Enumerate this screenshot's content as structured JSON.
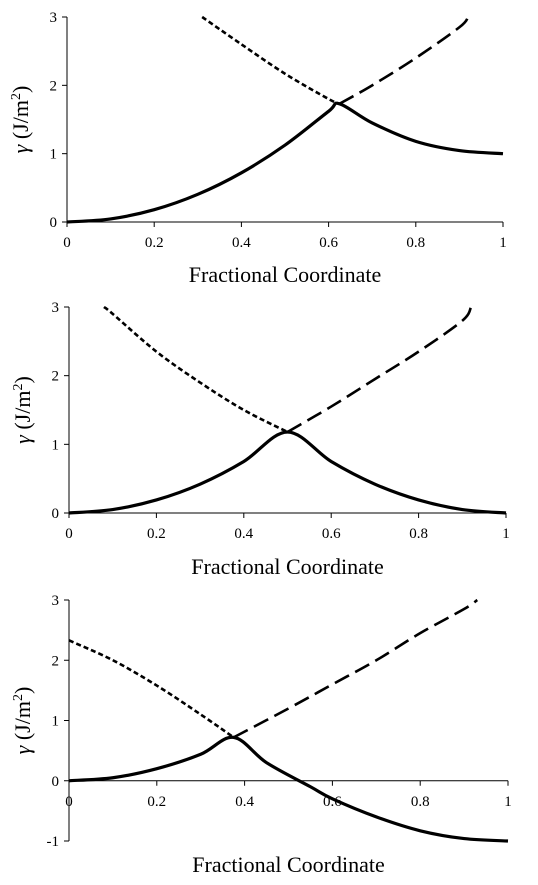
{
  "chart_data": [
    {
      "type": "line",
      "xlabel": "Fractional Coordinate",
      "ylabel": {
        "symbol": "γ",
        "unit_prefix": " (J/m",
        "unit_sup": "2",
        "unit_suffix": ")"
      },
      "xlim": [
        0,
        1
      ],
      "ylim": [
        0,
        3
      ],
      "xticks": [
        "0",
        "0.2",
        "0.4",
        "0.6",
        "0.8",
        "1"
      ],
      "yticks": [
        "0",
        "1",
        "2",
        "3"
      ],
      "grid": false,
      "legend": "none",
      "series": [
        {
          "style": "solid",
          "x": [
            0,
            0.1,
            0.2,
            0.3,
            0.4,
            0.5,
            0.6,
            0.625,
            0.7,
            0.8,
            0.9,
            1.0
          ],
          "y": [
            0,
            0.045,
            0.18,
            0.405,
            0.72,
            1.125,
            1.62,
            1.73,
            1.45,
            1.18,
            1.045,
            1.0
          ]
        },
        {
          "style": "dashed",
          "x": [
            0.625,
            0.7,
            0.8,
            0.9,
            0.92
          ],
          "y": [
            1.73,
            2.0,
            2.4,
            2.85,
            3.0
          ]
        },
        {
          "style": "dotted",
          "x": [
            0.31,
            0.4,
            0.5,
            0.6,
            0.625
          ],
          "y": [
            3.0,
            2.6,
            2.17,
            1.8,
            1.73
          ]
        }
      ]
    },
    {
      "type": "line",
      "xlabel": "Fractional Coordinate",
      "ylabel": {
        "symbol": "γ",
        "unit_prefix": " (J/m",
        "unit_sup": "2",
        "unit_suffix": ")"
      },
      "xlim": [
        0,
        1
      ],
      "ylim": [
        0,
        3
      ],
      "xticks": [
        "0",
        "0.2",
        "0.4",
        "0.6",
        "0.8",
        "1"
      ],
      "yticks": [
        "0",
        "1",
        "2",
        "3"
      ],
      "grid": false,
      "legend": "none",
      "series": [
        {
          "style": "solid",
          "x": [
            0,
            0.1,
            0.2,
            0.3,
            0.4,
            0.5,
            0.6,
            0.7,
            0.8,
            0.9,
            1.0
          ],
          "y": [
            0,
            0.05,
            0.19,
            0.42,
            0.75,
            1.18,
            0.75,
            0.42,
            0.19,
            0.05,
            0
          ]
        },
        {
          "style": "dashed",
          "x": [
            0.5,
            0.6,
            0.7,
            0.8,
            0.9,
            0.92
          ],
          "y": [
            1.18,
            1.55,
            1.95,
            2.35,
            2.8,
            3.0
          ]
        },
        {
          "style": "dotted",
          "x": [
            0.08,
            0.1,
            0.2,
            0.3,
            0.4,
            0.5
          ],
          "y": [
            3.0,
            2.9,
            2.35,
            1.9,
            1.5,
            1.18
          ]
        }
      ]
    },
    {
      "type": "line",
      "xlabel": "Fractional Coordinate",
      "ylabel": {
        "symbol": "γ",
        "unit_prefix": " (J/m",
        "unit_sup": "2",
        "unit_suffix": ")"
      },
      "xlim": [
        0,
        1
      ],
      "ylim": [
        -1,
        3
      ],
      "xticks": [
        "0",
        "0.2",
        "0.4",
        "0.6",
        "0.8",
        "1"
      ],
      "yticks": [
        "-1",
        "0",
        "1",
        "2",
        "3"
      ],
      "grid": false,
      "legend": "none",
      "series": [
        {
          "style": "solid",
          "x": [
            0,
            0.1,
            0.2,
            0.3,
            0.375,
            0.45,
            0.55,
            0.6,
            0.7,
            0.8,
            0.9,
            1.0
          ],
          "y": [
            0,
            0.05,
            0.2,
            0.44,
            0.72,
            0.3,
            -0.1,
            -0.3,
            -0.6,
            -0.83,
            -0.96,
            -1.0
          ]
        },
        {
          "style": "dashed",
          "x": [
            0.375,
            0.5,
            0.6,
            0.7,
            0.8,
            0.9,
            0.93
          ],
          "y": [
            0.72,
            1.2,
            1.6,
            2.0,
            2.45,
            2.85,
            3.0
          ]
        },
        {
          "style": "dotted",
          "x": [
            0,
            0.1,
            0.2,
            0.3,
            0.375
          ],
          "y": [
            2.33,
            2.0,
            1.58,
            1.1,
            0.72
          ]
        }
      ]
    }
  ]
}
